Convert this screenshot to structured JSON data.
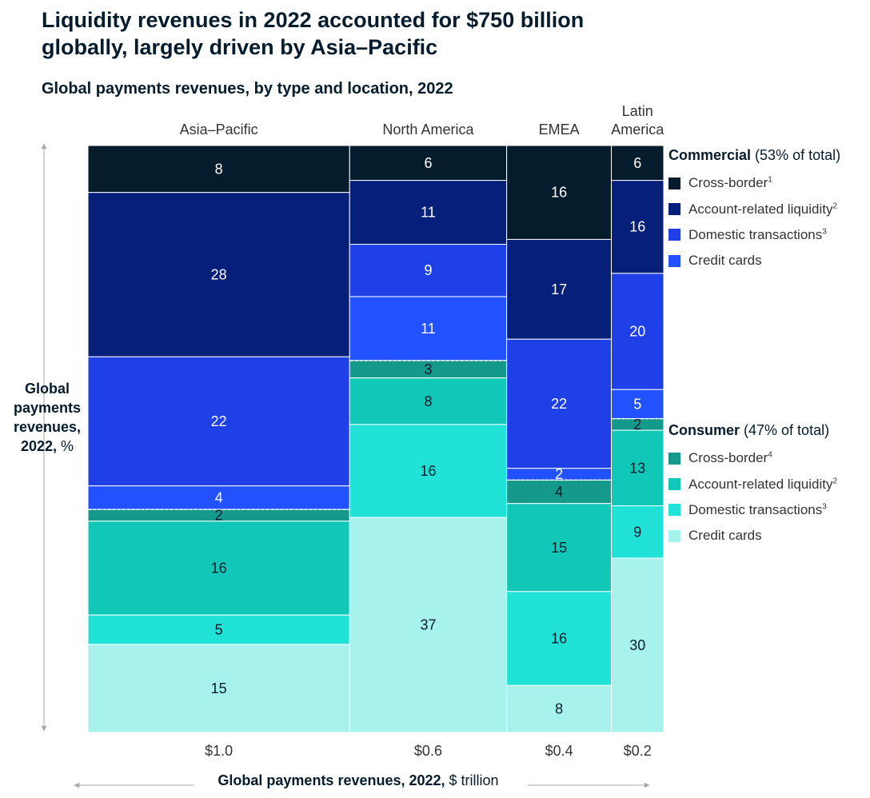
{
  "title": "Liquidity revenues in 2022 accounted for $750 billion globally, largely driven by Asia–Pacific",
  "subtitle": "Global payments revenues, by type and location, 2022",
  "y_axis_label": {
    "bold": "Global payments revenues, 2022,",
    "unit": " %"
  },
  "x_axis_label": {
    "bold": "Global payments revenues, 2022,",
    "unit": " $ trillion"
  },
  "colors": {
    "commercial_cross_border": "#051c2c",
    "commercial_account_liquidity": "#061f79",
    "commercial_domestic": "#1f40e6",
    "commercial_credit_cards": "#2251ff",
    "consumer_cross_border": "#14998a",
    "consumer_account_liquidity": "#11c8b8",
    "consumer_domestic": "#20e2d6",
    "consumer_credit_cards": "#a8f2ee"
  },
  "legend": {
    "commercial": {
      "heading": "Commercial",
      "share": " (53% of total)",
      "items": [
        {
          "label": "Cross-border",
          "sup": "1",
          "color_key": "commercial_cross_border"
        },
        {
          "label": "Account-related liquidity",
          "sup": "2",
          "color_key": "commercial_account_liquidity"
        },
        {
          "label": "Domestic transactions",
          "sup": "3",
          "color_key": "commercial_domestic"
        },
        {
          "label": "Credit cards",
          "sup": "",
          "color_key": "commercial_credit_cards"
        }
      ]
    },
    "consumer": {
      "heading": "Consumer",
      "share": " (47% of total)",
      "items": [
        {
          "label": "Cross-border",
          "sup": "4",
          "color_key": "consumer_cross_border"
        },
        {
          "label": "Account-related liquidity",
          "sup": "2",
          "color_key": "consumer_account_liquidity"
        },
        {
          "label": "Domestic transactions",
          "sup": "3",
          "color_key": "consumer_domestic"
        },
        {
          "label": "Credit cards",
          "sup": "",
          "color_key": "consumer_credit_cards"
        }
      ]
    }
  },
  "chart_data": {
    "type": "marimekko",
    "title": "Liquidity revenues in 2022 accounted for $750 billion globally, largely driven by Asia–Pacific",
    "subtitle": "Global payments revenues, by type and location, 2022",
    "xlabel": "Global payments revenues, 2022, $ trillion",
    "ylabel": "Global payments revenues, 2022, %",
    "segment_order": [
      "Commercial cross-border",
      "Commercial account-related liquidity",
      "Commercial domestic transactions",
      "Commercial credit cards",
      "Consumer cross-border",
      "Consumer account-related liquidity",
      "Consumer domestic transactions",
      "Consumer credit cards"
    ],
    "color_keys": [
      "commercial_cross_border",
      "commercial_account_liquidity",
      "commercial_domestic",
      "commercial_credit_cards",
      "consumer_cross_border",
      "consumer_account_liquidity",
      "consumer_domestic",
      "consumer_credit_cards"
    ],
    "dark_text_from_index": 4,
    "regions": [
      {
        "name": "Asia–Pacific",
        "total": 1.0,
        "total_label": "$1.0",
        "values": [
          8,
          28,
          22,
          4,
          2,
          16,
          5,
          15
        ]
      },
      {
        "name": "North America",
        "total": 0.6,
        "total_label": "$0.6",
        "values": [
          6,
          11,
          9,
          11,
          3,
          8,
          16,
          37
        ]
      },
      {
        "name": "EMEA",
        "total": 0.4,
        "total_label": "$0.4",
        "values": [
          16,
          17,
          22,
          2,
          4,
          15,
          16,
          8
        ]
      },
      {
        "name": "Latin America",
        "total": 0.2,
        "total_label": "$0.2",
        "values": [
          6,
          16,
          20,
          5,
          2,
          13,
          9,
          30
        ]
      }
    ]
  }
}
